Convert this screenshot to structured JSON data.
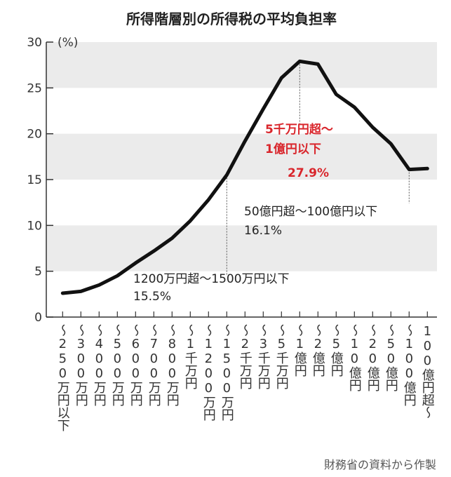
{
  "chart_data": {
    "type": "line",
    "title": "所得階層別の所得税の平均負担率",
    "ylabel": "(%)",
    "ylim": [
      0,
      30
    ],
    "yticks": [
      0,
      5,
      10,
      15,
      20,
      25,
      30
    ],
    "grid": "alternating gray bands",
    "categories": [
      "～250万円以下",
      "～300万円",
      "～400万円",
      "～500万円",
      "～600万円",
      "～700万円",
      "～800万円",
      "～1千万円",
      "～1200万円",
      "～1500万円",
      "～2千万円",
      "～3千万円",
      "～5千万円",
      "～1億円",
      "～2億円",
      "～5億円",
      "～10億円",
      "～20億円",
      "～50億円",
      "～100億円",
      "100億円超～"
    ],
    "values": [
      2.6,
      2.8,
      3.5,
      4.5,
      5.9,
      7.2,
      8.6,
      10.5,
      12.8,
      15.5,
      19.2,
      22.7,
      26.1,
      27.9,
      27.6,
      24.3,
      22.9,
      20.7,
      18.9,
      16.1,
      16.2
    ],
    "line_color": "#111111",
    "band_color": "#ebebeb",
    "annotations": [
      {
        "category_index": 9,
        "lines": [
          "1200万円超～1500万円以下",
          "15.5%"
        ],
        "color": "#222222"
      },
      {
        "category_index": 13,
        "lines": [
          "5千万円超～",
          "1億円以下",
          "27.9%"
        ],
        "color": "#d9262c"
      },
      {
        "category_index": 19,
        "lines": [
          "50億円超～100億円以下",
          "16.1%"
        ],
        "color": "#222222"
      }
    ],
    "source": "財務省の資料から作製"
  }
}
